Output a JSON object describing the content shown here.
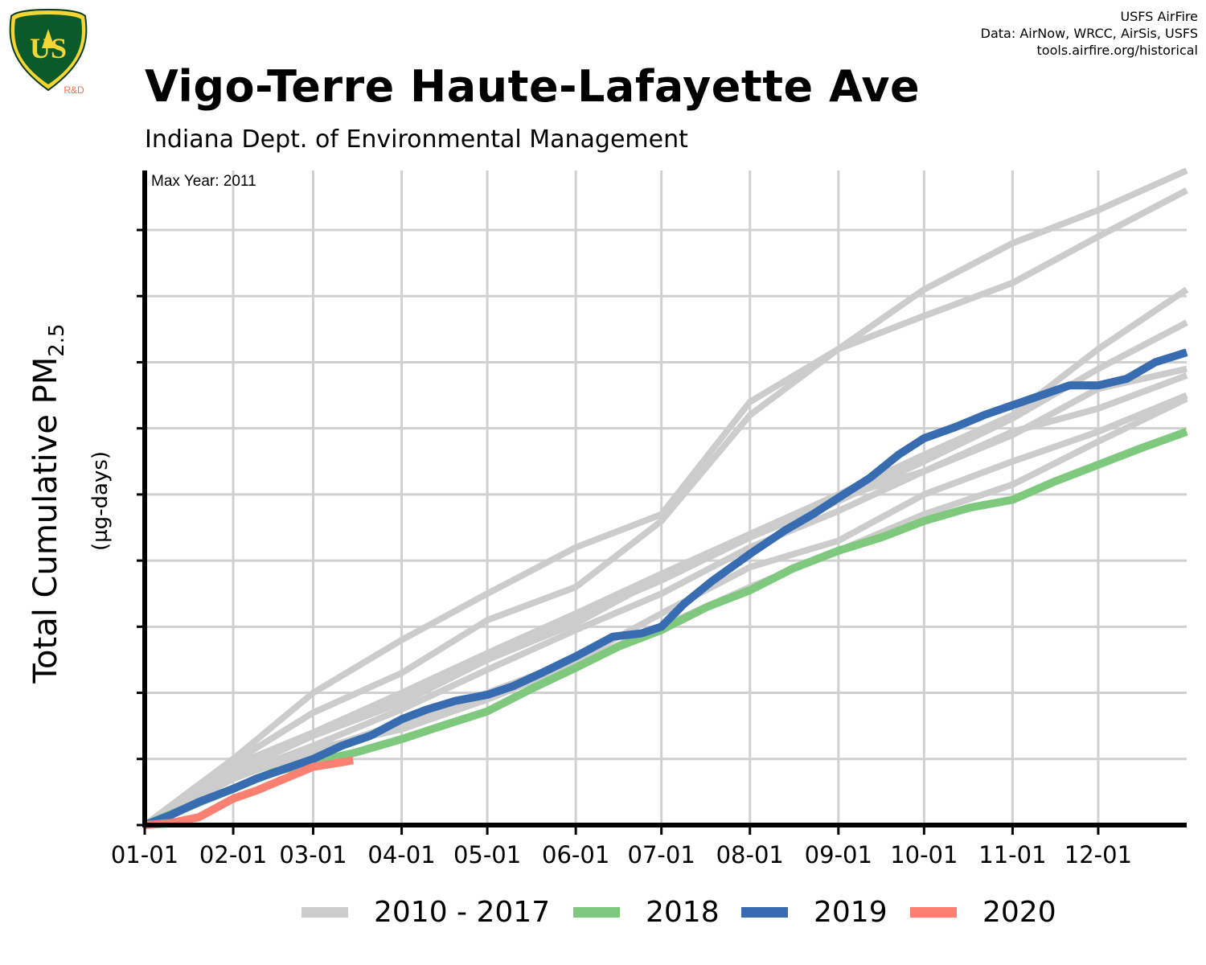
{
  "header": {
    "title": "Vigo-Terre Haute-Lafayette Ave",
    "subtitle": "Indiana Dept. of Environmental Management",
    "credits": [
      "USFS AirFire",
      "Data: AirNow, WRCC, AirSis, USFS",
      "tools.airfire.org/historical"
    ],
    "logo_text": {
      "top": "FOREST SERVICE",
      "main": "US",
      "bottom": "DEPARTMENT OF AGRICULTURE",
      "tag": "R&D"
    }
  },
  "annotation": "Max Year: 2011",
  "y_axis": {
    "label_main": "Total Cumulative PM",
    "label_sub": "2.5",
    "units": "(µg-days)"
  },
  "colors": {
    "historical": "#cccccc",
    "2018": "#7fc97f",
    "2019": "#386cb0",
    "2020": "#fb8072",
    "grid": "#d0d0d0",
    "axis": "#000000"
  },
  "legend": [
    {
      "label": "2010 - 2017",
      "color": "#cccccc"
    },
    {
      "label": "2018",
      "color": "#7fc97f"
    },
    {
      "label": "2019",
      "color": "#386cb0"
    },
    {
      "label": "2020",
      "color": "#fb8072"
    }
  ],
  "chart_data": {
    "type": "line",
    "title": "Vigo-Terre Haute-Lafayette Ave",
    "subtitle": "Indiana Dept. of Environmental Management",
    "xlabel": "",
    "ylabel": "Total Cumulative PM2.5 (µg-days)",
    "x_ticks": [
      "01-01",
      "02-01",
      "03-01",
      "04-01",
      "05-01",
      "06-01",
      "07-01",
      "08-01",
      "09-01",
      "10-01",
      "11-01",
      "12-01"
    ],
    "x_tick_days": [
      1,
      32,
      60,
      91,
      121,
      152,
      182,
      213,
      244,
      274,
      305,
      335
    ],
    "xlim": [
      1,
      366
    ],
    "ylim": [
      0,
      9.9
    ],
    "y_ticks": [
      0,
      1,
      2,
      3,
      4,
      5,
      6,
      7,
      8,
      9
    ],
    "y_tick_labels_shown": false,
    "grid": true,
    "legend_position": "bottom",
    "series": [
      {
        "name": "2010 - 2017",
        "group": "historical",
        "x": [
          1,
          32,
          60,
          91,
          121,
          152,
          182,
          213,
          244,
          274,
          305,
          335,
          366
        ],
        "y": [
          0,
          1.0,
          2.0,
          2.8,
          3.5,
          4.2,
          4.7,
          6.4,
          7.2,
          8.1,
          8.8,
          9.3,
          9.9
        ]
      },
      {
        "group": "historical",
        "x": [
          1,
          32,
          60,
          91,
          121,
          152,
          182,
          213,
          244,
          274,
          305,
          335,
          366
        ],
        "y": [
          0,
          0.95,
          1.7,
          2.3,
          3.1,
          3.6,
          4.6,
          6.2,
          7.2,
          7.7,
          8.2,
          8.9,
          9.6
        ]
      },
      {
        "group": "historical",
        "x": [
          1,
          32,
          60,
          91,
          121,
          152,
          182,
          213,
          244,
          274,
          305,
          335,
          366
        ],
        "y": [
          0,
          0.9,
          1.4,
          2.0,
          2.6,
          3.2,
          3.8,
          4.4,
          5.0,
          5.6,
          6.2,
          7.2,
          8.1
        ]
      },
      {
        "group": "historical",
        "x": [
          1,
          32,
          60,
          91,
          121,
          152,
          182,
          213,
          244,
          274,
          305,
          335,
          366
        ],
        "y": [
          0,
          0.85,
          1.4,
          1.95,
          2.55,
          3.15,
          3.7,
          4.35,
          4.9,
          5.5,
          6.15,
          6.9,
          7.6
        ]
      },
      {
        "group": "historical",
        "x": [
          1,
          32,
          60,
          91,
          121,
          152,
          182,
          213,
          244,
          274,
          305,
          335,
          366
        ],
        "y": [
          0,
          0.8,
          1.35,
          1.85,
          2.5,
          3.05,
          3.75,
          4.35,
          4.95,
          5.35,
          5.9,
          6.6,
          6.9
        ]
      },
      {
        "group": "historical",
        "x": [
          1,
          32,
          60,
          91,
          121,
          152,
          182,
          213,
          244,
          274,
          305,
          335,
          366
        ],
        "y": [
          0,
          0.75,
          1.2,
          1.75,
          2.35,
          2.95,
          3.5,
          4.2,
          4.75,
          5.35,
          5.95,
          6.3,
          6.8
        ]
      },
      {
        "group": "historical",
        "x": [
          1,
          32,
          60,
          91,
          121,
          152,
          182,
          213,
          244,
          274,
          305,
          335,
          366
        ],
        "y": [
          0,
          0.7,
          1.15,
          1.45,
          1.9,
          2.45,
          3.0,
          3.6,
          4.15,
          4.7,
          5.15,
          5.8,
          6.45
        ]
      },
      {
        "group": "historical",
        "x": [
          1,
          32,
          60,
          91,
          121,
          152,
          182,
          213,
          244,
          274,
          305,
          335,
          366
        ],
        "y": [
          0,
          0.72,
          1.1,
          1.55,
          2.0,
          2.5,
          3.2,
          3.9,
          4.3,
          5.0,
          5.5,
          5.95,
          6.5
        ]
      },
      {
        "name": "2018",
        "x": [
          1,
          15,
          32,
          46,
          60,
          75,
          91,
          105,
          121,
          136,
          152,
          167,
          182,
          198,
          213,
          228,
          244,
          259,
          274,
          290,
          305,
          320,
          335,
          350,
          366
        ],
        "y": [
          0,
          0.25,
          0.55,
          0.8,
          0.95,
          1.1,
          1.3,
          1.5,
          1.72,
          2.05,
          2.38,
          2.7,
          2.95,
          3.3,
          3.55,
          3.88,
          4.15,
          4.35,
          4.6,
          4.8,
          4.92,
          5.2,
          5.45,
          5.7,
          5.95
        ]
      },
      {
        "name": "2019",
        "x": [
          1,
          10,
          20,
          32,
          40,
          50,
          60,
          70,
          80,
          91,
          100,
          110,
          121,
          130,
          140,
          152,
          165,
          175,
          182,
          190,
          200,
          213,
          225,
          235,
          244,
          255,
          265,
          274,
          285,
          295,
          305,
          315,
          325,
          335,
          345,
          355,
          366
        ],
        "y": [
          0,
          0.15,
          0.35,
          0.55,
          0.7,
          0.85,
          1.0,
          1.2,
          1.35,
          1.6,
          1.75,
          1.88,
          1.97,
          2.1,
          2.3,
          2.55,
          2.85,
          2.9,
          3.0,
          3.35,
          3.7,
          4.1,
          4.45,
          4.7,
          4.95,
          5.25,
          5.6,
          5.85,
          6.02,
          6.2,
          6.35,
          6.5,
          6.65,
          6.65,
          6.75,
          7.0,
          7.15
        ]
      },
      {
        "name": "2020",
        "x": [
          1,
          10,
          20,
          32,
          40,
          50,
          60,
          70,
          74
        ],
        "y": [
          0,
          0.03,
          0.12,
          0.4,
          0.52,
          0.7,
          0.88,
          0.95,
          0.98
        ]
      }
    ]
  }
}
